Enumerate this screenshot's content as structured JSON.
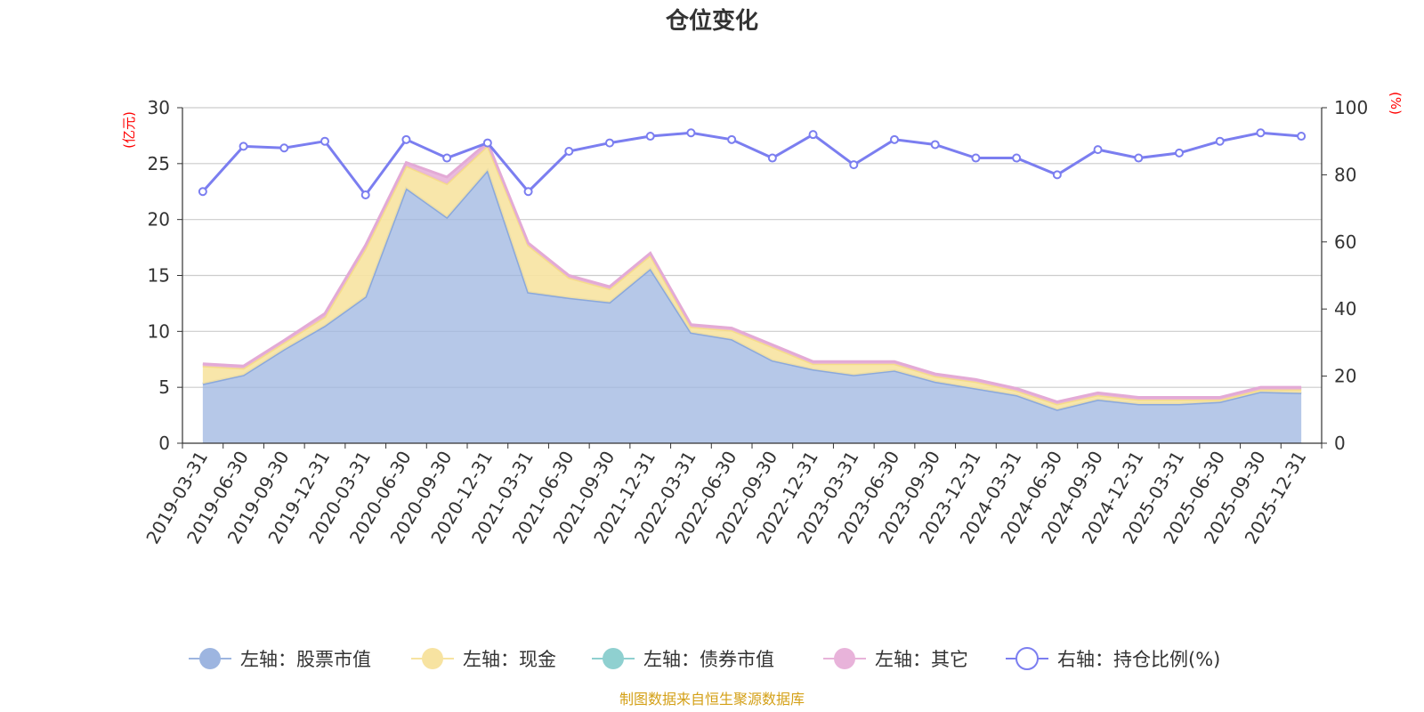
{
  "chart_data": {
    "type": "area",
    "title": "仓位变化",
    "categories": [
      "2019-03-31",
      "2019-06-30",
      "2019-09-30",
      "2019-12-31",
      "2020-03-31",
      "2020-06-30",
      "2020-09-30",
      "2020-12-31",
      "2021-03-31",
      "2021-06-30",
      "2021-09-30",
      "2021-12-31",
      "2022-03-31",
      "2022-06-30",
      "2022-09-30",
      "2022-12-31",
      "2023-03-31",
      "2023-06-30",
      "2023-09-30",
      "2023-12-31",
      "2024-03-31",
      "2024-06-30",
      "2024-09-30",
      "2024-12-31",
      "2025-03-31",
      "2025-06-30",
      "2025-09-30",
      "2025-12-31"
    ],
    "left_axis": {
      "unit_label": "(亿元)",
      "ylim": [
        0,
        30
      ],
      "ticks": [
        "0",
        "5",
        "10",
        "15",
        "20",
        "25",
        "30"
      ]
    },
    "right_axis": {
      "unit_label": "(%)",
      "ylim": [
        0,
        100
      ],
      "ticks": [
        "0",
        "20",
        "40",
        "60",
        "80",
        "100"
      ]
    },
    "series": [
      {
        "name": "左轴：股票市值",
        "axis": "left",
        "kind": "stacked-area",
        "color": "#9db5e0",
        "values": [
          5.3,
          6.1,
          8.4,
          10.5,
          13.1,
          22.8,
          20.2,
          24.4,
          13.5,
          13.0,
          12.6,
          15.6,
          9.9,
          9.3,
          7.4,
          6.6,
          6.1,
          6.5,
          5.5,
          4.9,
          4.3,
          3.0,
          3.9,
          3.5,
          3.5,
          3.7,
          4.6,
          4.5
        ]
      },
      {
        "name": "左轴：现金",
        "axis": "left",
        "kind": "stacked-area",
        "color": "#f7e3a1",
        "values": [
          1.6,
          0.6,
          0.6,
          0.8,
          4.3,
          2.0,
          3.0,
          2.2,
          4.2,
          1.8,
          1.2,
          1.2,
          0.5,
          0.8,
          1.2,
          0.5,
          1.0,
          0.6,
          0.5,
          0.6,
          0.4,
          0.5,
          0.4,
          0.4,
          0.4,
          0.2,
          0.2,
          0.3
        ]
      },
      {
        "name": "左轴：债券市值",
        "axis": "left",
        "kind": "stacked-area",
        "color": "#8fd0d0",
        "values": [
          0,
          0,
          0,
          0,
          0,
          0,
          0,
          0,
          0,
          0,
          0,
          0,
          0,
          0,
          0,
          0,
          0,
          0,
          0,
          0,
          0,
          0,
          0,
          0,
          0,
          0,
          0,
          0
        ]
      },
      {
        "name": "左轴：其它",
        "axis": "left",
        "kind": "stacked-area",
        "color": "#e8b3da",
        "values": [
          0.2,
          0.2,
          0.2,
          0.3,
          0.3,
          0.3,
          0.6,
          0.3,
          0.2,
          0.2,
          0.2,
          0.2,
          0.2,
          0.2,
          0.2,
          0.2,
          0.2,
          0.2,
          0.2,
          0.2,
          0.2,
          0.2,
          0.2,
          0.2,
          0.2,
          0.2,
          0.2,
          0.2
        ]
      },
      {
        "name": "右轴：持仓比例(%)",
        "axis": "right",
        "kind": "line",
        "color": "#7b7ef0",
        "values": [
          75,
          88.5,
          88,
          90,
          74,
          90.5,
          85,
          89.5,
          75,
          87,
          89.5,
          91.5,
          92.5,
          90.5,
          85,
          92,
          83,
          90.5,
          89,
          85,
          85,
          80,
          87.5,
          85,
          86.5,
          90,
          92.5,
          91.5
        ]
      }
    ],
    "grid": true,
    "legend_position": "bottom"
  },
  "source_note": "制图数据来自恒生聚源数据库"
}
